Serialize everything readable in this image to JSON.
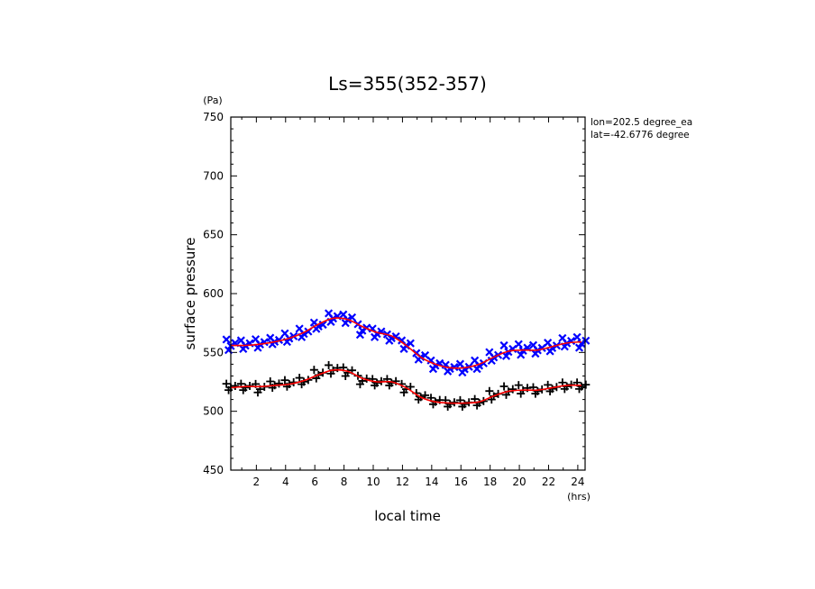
{
  "chart_data": {
    "type": "line",
    "title": "Ls=355(352-357)",
    "xlabel": "local time",
    "ylabel": "surface pressure",
    "x_unit": "(hrs)",
    "y_unit": "(Pa)",
    "xlim": [
      0.25,
      24.5
    ],
    "ylim": [
      450,
      750
    ],
    "x_ticks": [
      2,
      4,
      6,
      8,
      10,
      12,
      14,
      16,
      18,
      20,
      22,
      24
    ],
    "y_ticks": [
      450,
      500,
      550,
      600,
      650,
      700,
      750
    ],
    "annotations": [
      "lon=202.5 degree_ea",
      "lat=-42.6776 degree"
    ],
    "colors": {
      "upper_markers": "#0000ff",
      "lower_markers": "#000000",
      "fit_line": "#ff0000"
    },
    "x": [
      0.25,
      1.25,
      2.25,
      3.25,
      4.25,
      5.25,
      6.25,
      7.25,
      8.25,
      9.25,
      10.25,
      11.25,
      12.25,
      13.25,
      14.25,
      15.25,
      16.25,
      17.25,
      18.25,
      19.25,
      20.25,
      21.25,
      22.25,
      23.25,
      24.25
    ],
    "series": [
      {
        "marker": "x",
        "values": [
          557,
          557,
          558,
          560,
          563,
          567,
          573,
          580,
          579,
          570,
          567,
          563,
          557,
          547,
          540,
          537,
          537,
          540,
          547,
          552,
          553,
          553,
          555,
          559,
          559
        ],
        "spread": [
          5,
          4,
          4,
          3,
          4,
          4,
          3,
          4,
          4,
          5,
          4,
          3,
          4,
          3,
          4,
          3,
          4,
          4,
          4,
          5,
          5,
          4,
          4,
          4,
          5
        ],
        "fit": [
          556,
          556,
          557,
          559,
          562,
          567,
          574,
          579,
          578,
          572,
          567,
          564,
          556,
          546,
          540,
          537,
          537,
          540,
          546,
          551,
          552,
          552,
          555,
          558,
          559
        ]
      },
      {
        "marker": "+",
        "values": [
          521,
          521,
          520,
          523,
          524,
          526,
          532,
          536,
          534,
          527,
          525,
          525,
          520,
          513,
          509,
          507,
          507,
          508,
          514,
          518,
          519,
          518,
          520,
          522,
          522
        ],
        "spread": [
          3,
          3,
          4,
          3,
          3,
          3,
          4,
          4,
          4,
          4,
          3,
          3,
          4,
          3,
          3,
          3,
          3,
          3,
          4,
          4,
          4,
          3,
          3,
          3,
          3
        ],
        "fit": [
          520,
          521,
          521,
          522,
          523,
          526,
          531,
          535,
          534,
          528,
          525,
          525,
          520,
          512,
          508,
          507,
          507,
          508,
          513,
          517,
          518,
          518,
          520,
          522,
          522
        ]
      }
    ]
  }
}
